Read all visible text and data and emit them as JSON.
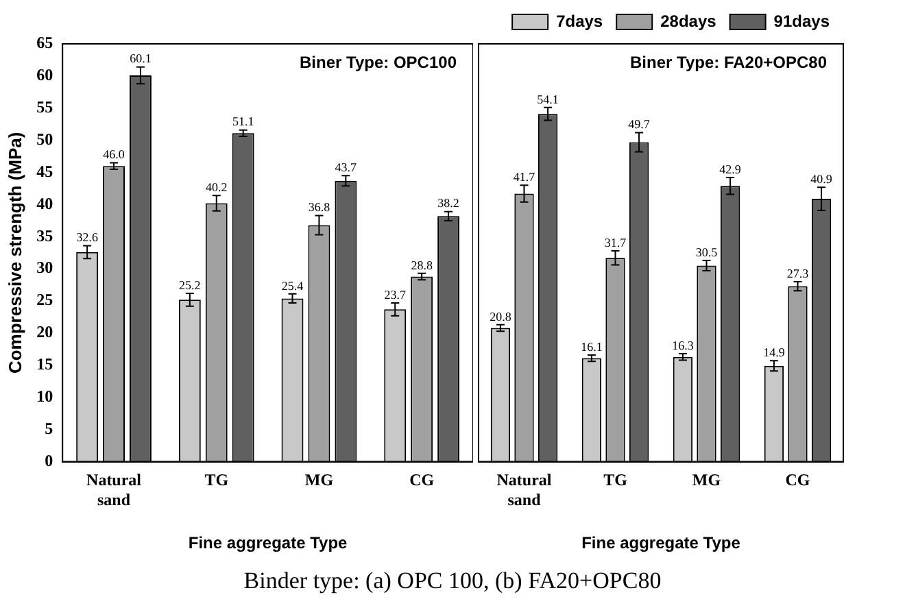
{
  "chart_data": [
    {
      "type": "bar",
      "xlabel": "Fine aggregate Type",
      "ylabel": "Compressive strength (MPa)",
      "categories": [
        "Natural sand",
        "TG",
        "MG",
        "CG"
      ],
      "ylim": [
        0,
        65
      ],
      "yticks": [
        0,
        5,
        10,
        15,
        20,
        25,
        30,
        35,
        40,
        45,
        50,
        55,
        60,
        65
      ],
      "grid": false,
      "legend": false,
      "annotations": [
        "Biner Type: OPC100",
        "Binder type: (a) OPC 100, (b) FA20+OPC80"
      ],
      "series": [
        {
          "color": "#c8c8c8",
          "values": [
            32.6,
            25.2,
            25.4,
            23.7
          ],
          "errors": [
            1,
            1,
            0.7,
            1
          ],
          "value_labels": [
            "32.6",
            "25.2",
            "25.4",
            "23.7"
          ]
        },
        {
          "color": "#a0a0a0",
          "values": [
            46.0,
            40.2,
            36.8,
            28.8
          ],
          "errors": [
            0.5,
            1.2,
            1.5,
            0.5
          ],
          "value_labels": [
            "46.0",
            "40.2",
            "36.8",
            "28.8"
          ]
        },
        {
          "color": "#606060",
          "values": [
            60.1,
            51.1,
            43.7,
            38.2
          ],
          "errors": [
            1.3,
            0.5,
            0.8,
            0.7
          ],
          "value_labels": [
            "60.1",
            "51.1",
            "43.7",
            "38.2"
          ]
        }
      ]
    },
    {
      "type": "bar",
      "xlabel": "Fine aggregate Type",
      "categories": [
        "Natural sand",
        "TG",
        "MG",
        "CG"
      ],
      "ylim": [
        0,
        65
      ],
      "yticks": [
        0,
        5,
        10,
        15,
        20,
        25,
        30,
        35,
        40,
        45,
        50,
        55,
        60,
        65
      ],
      "tick_labels": "x",
      "grid": false,
      "legend": "top right",
      "annotations": [
        "Biner Type: FA20+OPC80"
      ],
      "series": [
        {
          "name": "7days",
          "color": "#c8c8c8",
          "values": [
            20.8,
            16.1,
            16.3,
            14.9
          ],
          "errors": [
            0.5,
            0.5,
            0.5,
            0.8
          ],
          "value_labels": [
            "20.8",
            "16.1",
            "16.3",
            "14.9"
          ]
        },
        {
          "name": "28days",
          "color": "#a0a0a0",
          "values": [
            41.7,
            31.7,
            30.5,
            27.3
          ],
          "errors": [
            1.3,
            1.1,
            0.8,
            0.7
          ],
          "value_labels": [
            "41.7",
            "31.7",
            "30.5",
            "27.3"
          ]
        },
        {
          "name": "91days",
          "color": "#606060",
          "values": [
            54.1,
            49.7,
            42.9,
            40.9
          ],
          "errors": [
            1,
            1.5,
            1.3,
            1.8
          ],
          "value_labels": [
            "54.1",
            "49.7",
            "42.9",
            "40.9"
          ]
        }
      ]
    }
  ]
}
